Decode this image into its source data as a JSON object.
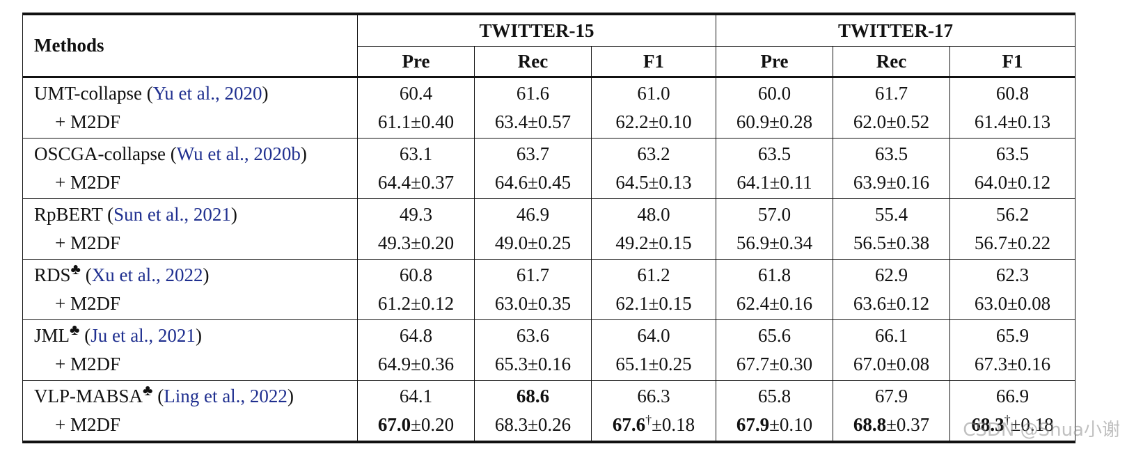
{
  "header": {
    "methods": "Methods",
    "group1": "TWITTER-15",
    "group2": "TWITTER-17",
    "cols": [
      "Pre",
      "Rec",
      "F1",
      "Pre",
      "Rec",
      "F1"
    ]
  },
  "rows": [
    {
      "method": "UMT-collapse",
      "cite": "Yu et al., 2020",
      "mark": "",
      "base": [
        "60.4",
        "61.6",
        "61.0",
        "60.0",
        "61.7",
        "60.8"
      ],
      "plus_label": "+ M2DF",
      "plus": [
        "61.1±0.40",
        "63.4±0.57",
        "62.2±0.10",
        "60.9±0.28",
        "62.0±0.52",
        "61.4±0.13"
      ]
    },
    {
      "method": "OSCGA-collapse",
      "cite": "Wu et al., 2020b",
      "mark": "",
      "base": [
        "63.1",
        "63.7",
        "63.2",
        "63.5",
        "63.5",
        "63.5"
      ],
      "plus_label": "+ M2DF",
      "plus": [
        "64.4±0.37",
        "64.6±0.45",
        "64.5±0.13",
        "64.1±0.11",
        "63.9±0.16",
        "64.0±0.12"
      ]
    },
    {
      "method": "RpBERT",
      "cite": "Sun et al., 2021",
      "mark": "",
      "base": [
        "49.3",
        "46.9",
        "48.0",
        "57.0",
        "55.4",
        "56.2"
      ],
      "plus_label": "+ M2DF",
      "plus": [
        "49.3±0.20",
        "49.0±0.25",
        "49.2±0.15",
        "56.9±0.34",
        "56.5±0.38",
        "56.7±0.22"
      ]
    },
    {
      "method": "RDS",
      "cite": "Xu et al., 2022",
      "mark": "♣",
      "base": [
        "60.8",
        "61.7",
        "61.2",
        "61.8",
        "62.9",
        "62.3"
      ],
      "plus_label": "+ M2DF",
      "plus": [
        "61.2±0.12",
        "63.0±0.35",
        "62.1±0.15",
        "62.4±0.16",
        "63.6±0.12",
        "63.0±0.08"
      ]
    },
    {
      "method": "JML",
      "cite": "Ju et al., 2021",
      "mark": "♣",
      "base": [
        "64.8",
        "63.6",
        "64.0",
        "65.6",
        "66.1",
        "65.9"
      ],
      "plus_label": "+ M2DF",
      "plus": [
        "64.9±0.36",
        "65.3±0.16",
        "65.1±0.25",
        "67.7±0.30",
        "67.0±0.08",
        "67.3±0.16"
      ]
    },
    {
      "method": "VLP-MABSA",
      "cite": "Ling et al., 2022",
      "mark": "♣",
      "base": [
        "64.1",
        "68.6",
        "66.3",
        "65.8",
        "67.9",
        "66.9"
      ],
      "plus_label": "+ M2DF",
      "plus_parts": [
        {
          "bold": "67.0",
          "dagger": "",
          "rest": "±0.20"
        },
        {
          "bold": "",
          "dagger": "",
          "rest": "68.3±0.26"
        },
        {
          "bold": "67.6",
          "dagger": "†",
          "rest": "±0.18"
        },
        {
          "bold": "67.9",
          "dagger": "",
          "rest": "±0.10"
        },
        {
          "bold": "68.8",
          "dagger": "",
          "rest": "±0.37"
        },
        {
          "bold": "68.3",
          "dagger": "†",
          "rest": "±0.18"
        }
      ]
    }
  ],
  "watermark": "CSDN @Shua小谢",
  "colors": {
    "citation": "#1f2f8f",
    "rule": "#111111"
  }
}
